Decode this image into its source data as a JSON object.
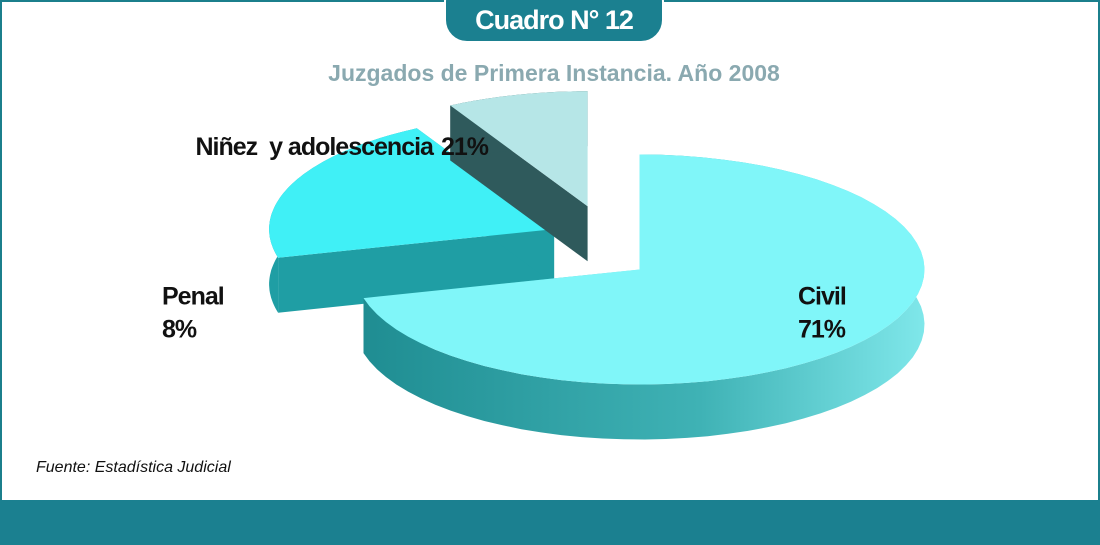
{
  "chart_data": {
    "type": "pie3d",
    "title": "Cuadro N° 12",
    "subtitle": "Juzgados de Primera Instancia. Año 2008",
    "categories": [
      "Civil",
      "Niñez  y adolescencia",
      "Penal"
    ],
    "values": [
      71,
      21,
      8
    ],
    "value_labels": [
      "71%",
      "21%",
      "8%"
    ],
    "colors": [
      "#80f6f9",
      "#40f0f6",
      "#b6e6e7"
    ],
    "source": "Fuente: Estadística Judicial"
  }
}
